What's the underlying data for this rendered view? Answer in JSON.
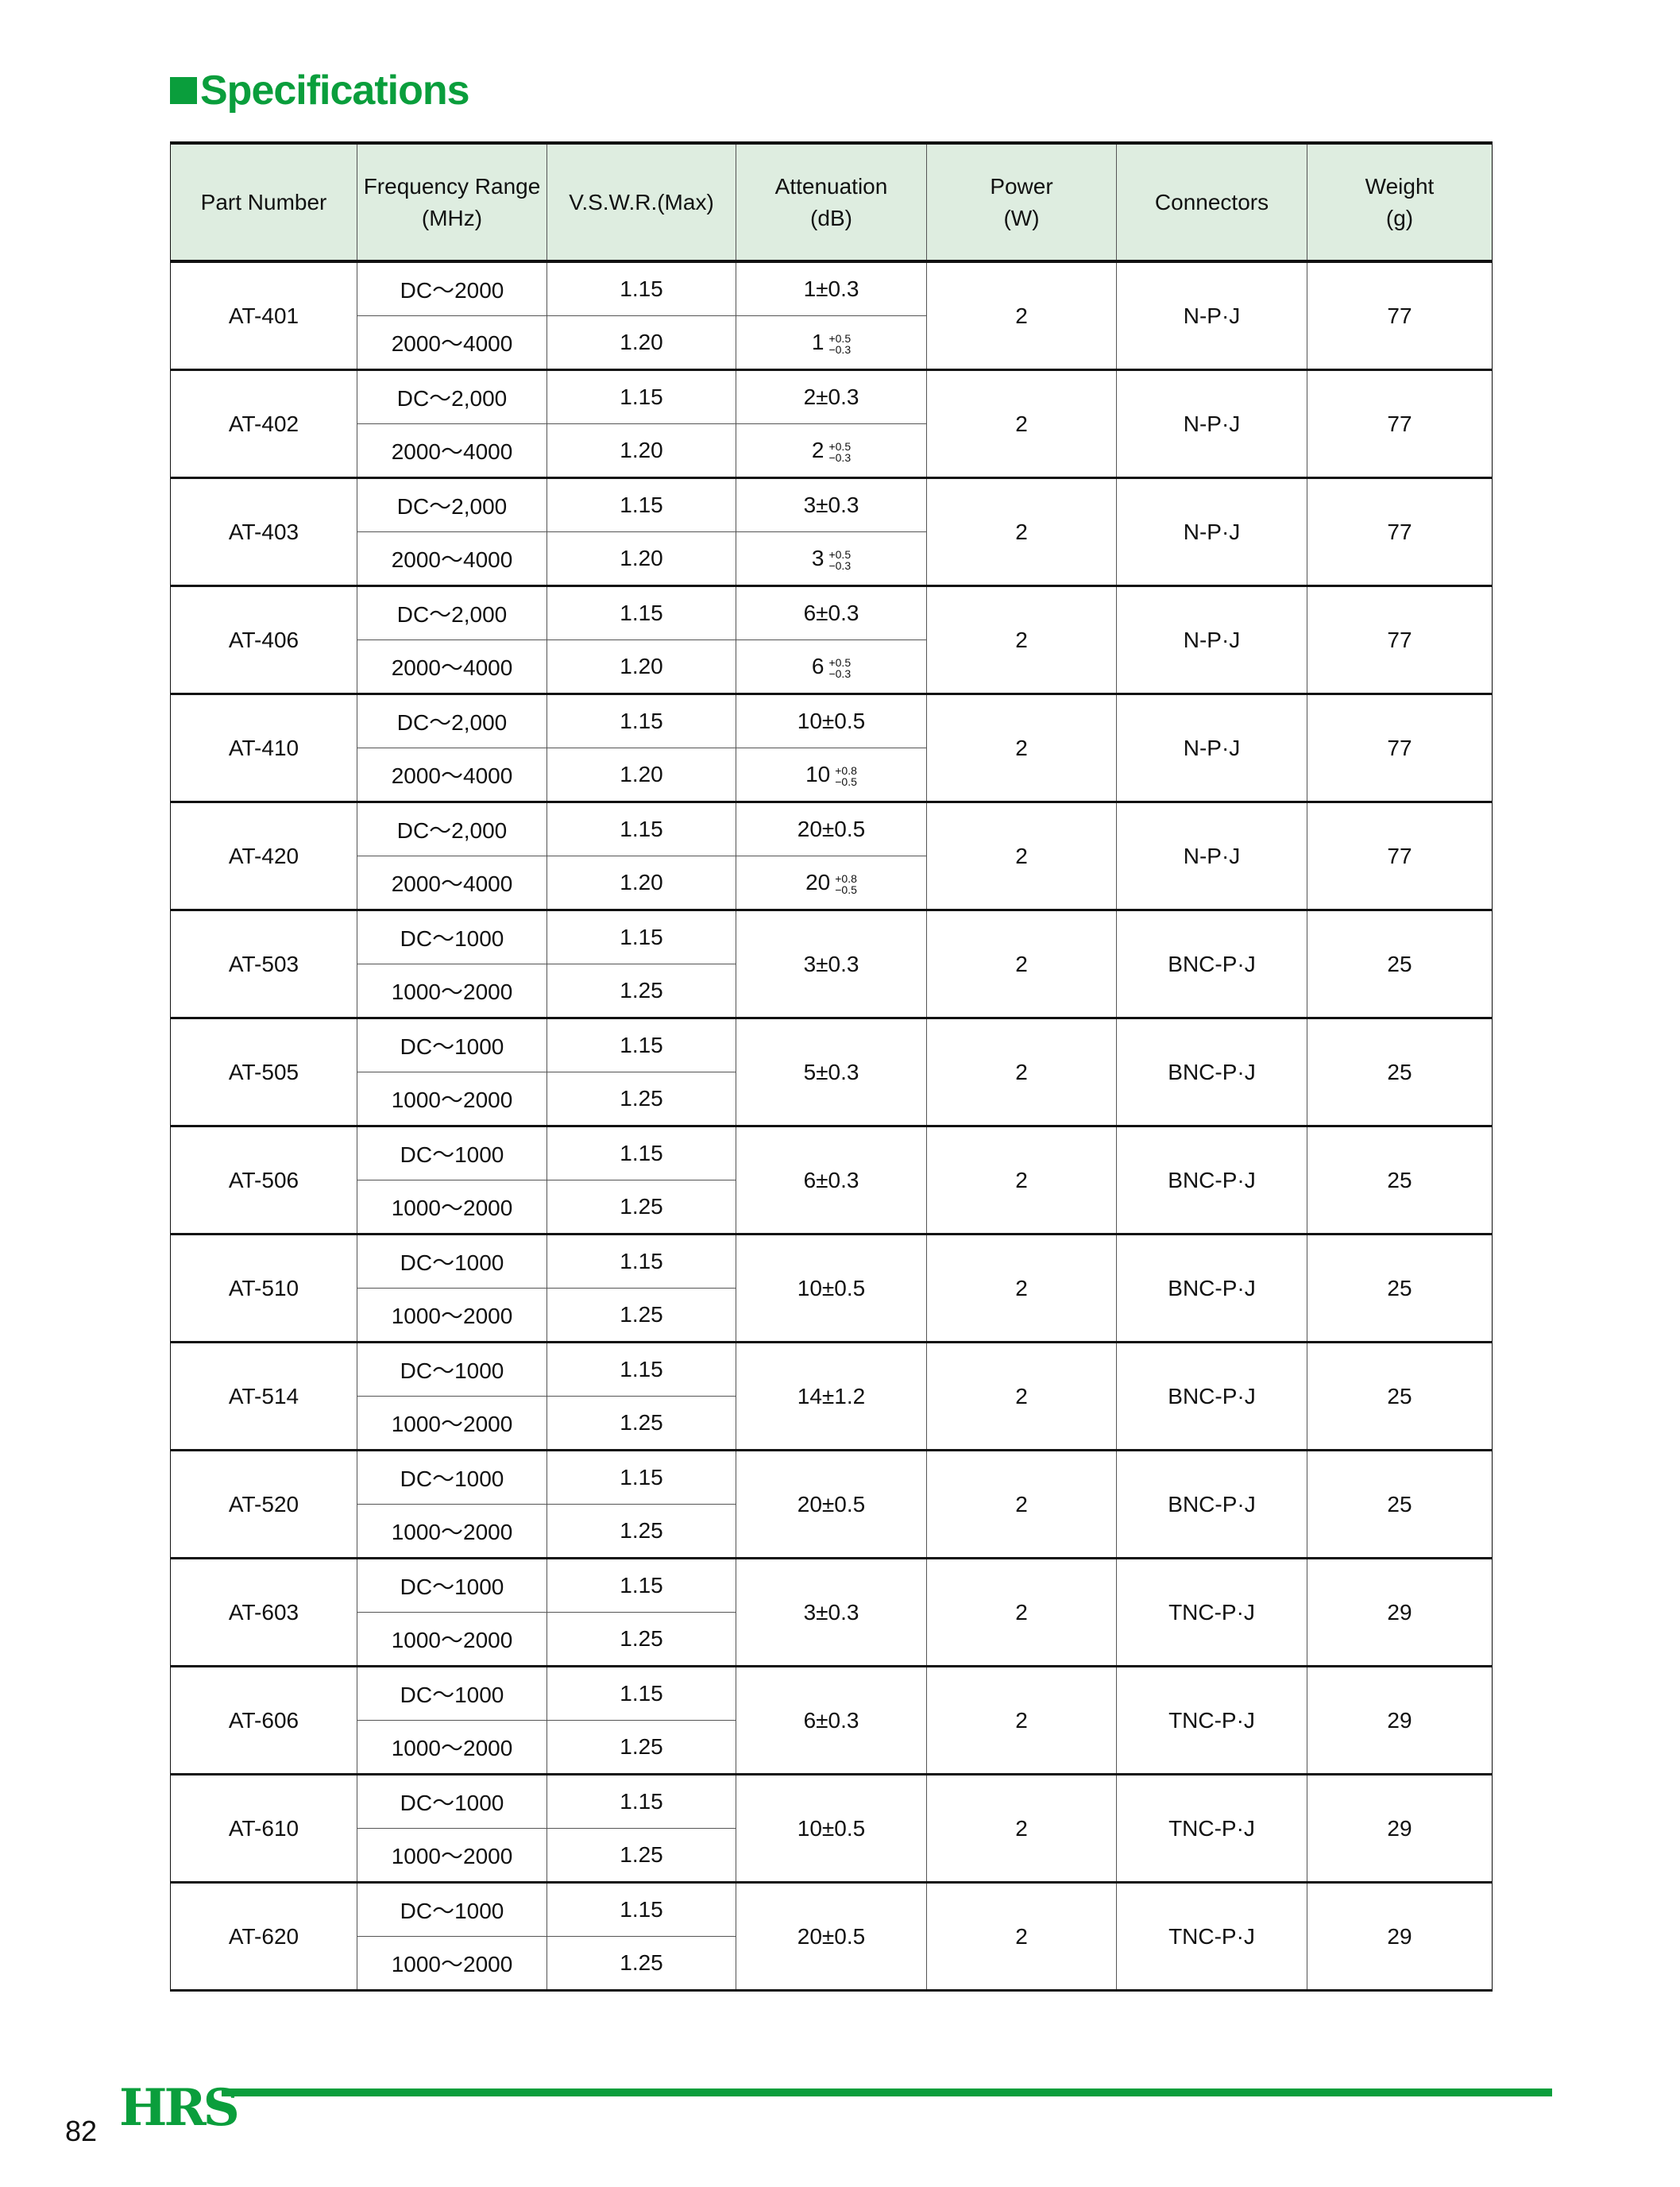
{
  "title": "Specifications",
  "headers": {
    "part_number": "Part Number",
    "frequency_1": "Frequency Range",
    "frequency_2": "(MHz)",
    "vswr": "V.S.W.R.(Max)",
    "attenuation_1": "Attenuation",
    "attenuation_2": "(dB)",
    "power_1": "Power",
    "power_2": "(W)",
    "connectors": "Connectors",
    "weight_1": "Weight",
    "weight_2": "(g)"
  },
  "rows": [
    {
      "part": "AT-401",
      "freq": [
        "DC～2000",
        "2000～4000"
      ],
      "vswr": [
        "1.15",
        "1.20"
      ],
      "att": [
        {
          "text": "1±0.3"
        },
        {
          "nominal": "1",
          "plus": "+0.5",
          "minus": "−0.3"
        }
      ],
      "power": "2",
      "connector": "N-P·J",
      "weight": "77"
    },
    {
      "part": "AT-402",
      "freq": [
        "DC～2,000",
        "2000～4000"
      ],
      "vswr": [
        "1.15",
        "1.20"
      ],
      "att": [
        {
          "text": "2±0.3"
        },
        {
          "nominal": "2",
          "plus": "+0.5",
          "minus": "−0.3"
        }
      ],
      "power": "2",
      "connector": "N-P·J",
      "weight": "77"
    },
    {
      "part": "AT-403",
      "freq": [
        "DC～2,000",
        "2000～4000"
      ],
      "vswr": [
        "1.15",
        "1.20"
      ],
      "att": [
        {
          "text": "3±0.3"
        },
        {
          "nominal": "3",
          "plus": "+0.5",
          "minus": "−0.3"
        }
      ],
      "power": "2",
      "connector": "N-P·J",
      "weight": "77"
    },
    {
      "part": "AT-406",
      "freq": [
        "DC～2,000",
        "2000～4000"
      ],
      "vswr": [
        "1.15",
        "1.20"
      ],
      "att": [
        {
          "text": "6±0.3"
        },
        {
          "nominal": "6",
          "plus": "+0.5",
          "minus": "−0.3"
        }
      ],
      "power": "2",
      "connector": "N-P·J",
      "weight": "77"
    },
    {
      "part": "AT-410",
      "freq": [
        "DC～2,000",
        "2000～4000"
      ],
      "vswr": [
        "1.15",
        "1.20"
      ],
      "att": [
        {
          "text": "10±0.5"
        },
        {
          "nominal": "10",
          "plus": "+0.8",
          "minus": "−0.5"
        }
      ],
      "power": "2",
      "connector": "N-P·J",
      "weight": "77"
    },
    {
      "part": "AT-420",
      "freq": [
        "DC～2,000",
        "2000～4000"
      ],
      "vswr": [
        "1.15",
        "1.20"
      ],
      "att": [
        {
          "text": "20±0.5"
        },
        {
          "nominal": "20",
          "plus": "+0.8",
          "minus": "−0.5"
        }
      ],
      "power": "2",
      "connector": "N-P·J",
      "weight": "77"
    },
    {
      "part": "AT-503",
      "freq": [
        "DC～1000",
        "1000～2000"
      ],
      "vswr": [
        "1.15",
        "1.25"
      ],
      "att": [
        {
          "text": "3±0.3"
        }
      ],
      "power": "2",
      "connector": "BNC-P·J",
      "weight": "25"
    },
    {
      "part": "AT-505",
      "freq": [
        "DC～1000",
        "1000～2000"
      ],
      "vswr": [
        "1.15",
        "1.25"
      ],
      "att": [
        {
          "text": "5±0.3"
        }
      ],
      "power": "2",
      "connector": "BNC-P·J",
      "weight": "25"
    },
    {
      "part": "AT-506",
      "freq": [
        "DC～1000",
        "1000～2000"
      ],
      "vswr": [
        "1.15",
        "1.25"
      ],
      "att": [
        {
          "text": "6±0.3"
        }
      ],
      "power": "2",
      "connector": "BNC-P·J",
      "weight": "25"
    },
    {
      "part": "AT-510",
      "freq": [
        "DC～1000",
        "1000～2000"
      ],
      "vswr": [
        "1.15",
        "1.25"
      ],
      "att": [
        {
          "text": "10±0.5"
        }
      ],
      "power": "2",
      "connector": "BNC-P·J",
      "weight": "25"
    },
    {
      "part": "AT-514",
      "freq": [
        "DC～1000",
        "1000～2000"
      ],
      "vswr": [
        "1.15",
        "1.25"
      ],
      "att": [
        {
          "text": "14±1.2"
        }
      ],
      "power": "2",
      "connector": "BNC-P·J",
      "weight": "25"
    },
    {
      "part": "AT-520",
      "freq": [
        "DC～1000",
        "1000～2000"
      ],
      "vswr": [
        "1.15",
        "1.25"
      ],
      "att": [
        {
          "text": "20±0.5"
        }
      ],
      "power": "2",
      "connector": "BNC-P·J",
      "weight": "25"
    },
    {
      "part": "AT-603",
      "freq": [
        "DC～1000",
        "1000～2000"
      ],
      "vswr": [
        "1.15",
        "1.25"
      ],
      "att": [
        {
          "text": "3±0.3"
        }
      ],
      "power": "2",
      "connector": "TNC-P·J",
      "weight": "29"
    },
    {
      "part": "AT-606",
      "freq": [
        "DC～1000",
        "1000～2000"
      ],
      "vswr": [
        "1.15",
        "1.25"
      ],
      "att": [
        {
          "text": "6±0.3"
        }
      ],
      "power": "2",
      "connector": "TNC-P·J",
      "weight": "29"
    },
    {
      "part": "AT-610",
      "freq": [
        "DC～1000",
        "1000～2000"
      ],
      "vswr": [
        "1.15",
        "1.25"
      ],
      "att": [
        {
          "text": "10±0.5"
        }
      ],
      "power": "2",
      "connector": "TNC-P·J",
      "weight": "29"
    },
    {
      "part": "AT-620",
      "freq": [
        "DC～1000",
        "1000～2000"
      ],
      "vswr": [
        "1.15",
        "1.25"
      ],
      "att": [
        {
          "text": "20±0.5"
        }
      ],
      "power": "2",
      "connector": "TNC-P·J",
      "weight": "29"
    }
  ],
  "footer": {
    "page_number": "82",
    "logo": "HRS"
  },
  "colors": {
    "brand_green": "#0a9e3c",
    "header_bg": "#deede0"
  }
}
